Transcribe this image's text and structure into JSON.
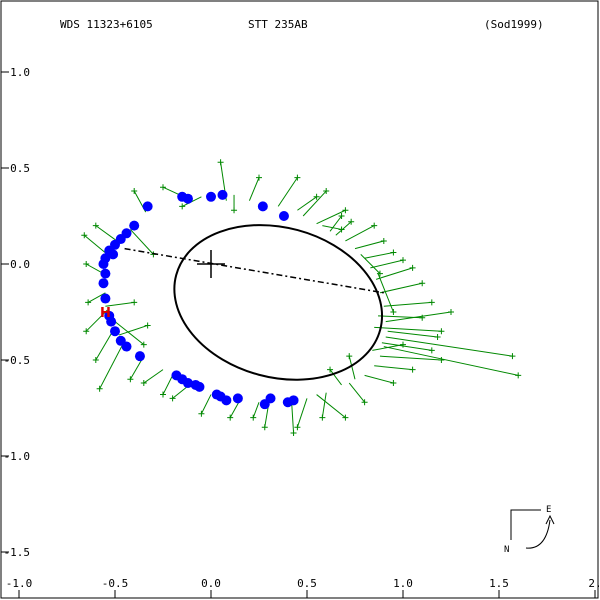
{
  "header": {
    "wds": "WDS 11323+6105",
    "pair": "STT 235AB",
    "ref": "(Sod1999)"
  },
  "compass": {
    "east": "E",
    "north": "N"
  },
  "colors": {
    "orbit": "#000000",
    "observations": "#0000ff",
    "residuals": "#008800",
    "hipparcos": "#dd0000",
    "axis": "#000000"
  },
  "chart_data": {
    "type": "scatter",
    "title": "STT 235AB",
    "xlabel": "",
    "ylabel": "",
    "xlim": [
      -1.0,
      2.0
    ],
    "ylim": [
      -1.7,
      1.3
    ],
    "x_ticks": [
      -1.0,
      -0.5,
      0.0,
      0.5,
      1.0,
      1.5,
      2.0
    ],
    "x_tick_labels": [
      "-1.0",
      "-0.5",
      "0.0",
      "0.5",
      "1.0",
      "1.5",
      "2."
    ],
    "y_ticks": [
      1.0,
      0.5,
      0.0,
      -0.5,
      -1.0,
      -1.5
    ],
    "y_tick_labels": [
      "1.0",
      "0.5",
      "0.0",
      "-0.5",
      "-1.0",
      "-1.5"
    ],
    "grid": false,
    "primary": [
      0.0,
      0.0
    ],
    "orbit": {
      "center": [
        0.35,
        -0.2
      ],
      "semi_major": 0.55,
      "semi_minor": 0.39,
      "tilt_deg": -15
    },
    "line_of_nodes": [
      [
        -0.45,
        0.08
      ],
      [
        0.9,
        -0.15
      ]
    ],
    "hipparcos_point": [
      -0.55,
      -0.25
    ],
    "hipparcos_label": "H",
    "observations": [
      [
        -0.55,
        -0.18
      ],
      [
        -0.56,
        -0.1
      ],
      [
        -0.55,
        -0.05
      ],
      [
        -0.56,
        0.0
      ],
      [
        -0.55,
        0.03
      ],
      [
        -0.53,
        0.07
      ],
      [
        -0.5,
        0.1
      ],
      [
        -0.47,
        0.13
      ],
      [
        -0.44,
        0.16
      ],
      [
        -0.4,
        0.2
      ],
      [
        -0.33,
        0.3
      ],
      [
        -0.15,
        0.35
      ],
      [
        -0.12,
        0.34
      ],
      [
        0.0,
        0.35
      ],
      [
        0.06,
        0.36
      ],
      [
        0.27,
        0.3
      ],
      [
        0.38,
        0.25
      ],
      [
        -0.51,
        0.05
      ],
      [
        -0.53,
        -0.27
      ],
      [
        -0.52,
        -0.3
      ],
      [
        -0.5,
        -0.35
      ],
      [
        -0.47,
        -0.4
      ],
      [
        -0.44,
        -0.43
      ],
      [
        -0.37,
        -0.48
      ],
      [
        -0.18,
        -0.58
      ],
      [
        -0.15,
        -0.6
      ],
      [
        -0.08,
        -0.63
      ],
      [
        -0.06,
        -0.64
      ],
      [
        0.03,
        -0.68
      ],
      [
        0.08,
        -0.71
      ],
      [
        0.14,
        -0.7
      ],
      [
        0.28,
        -0.73
      ],
      [
        0.31,
        -0.7
      ],
      [
        0.4,
        -0.72
      ],
      [
        0.43,
        -0.71
      ],
      [
        -0.12,
        -0.62
      ],
      [
        0.05,
        -0.69
      ]
    ],
    "residuals": [
      [
        [
          0.08,
          0.33
        ],
        [
          0.05,
          0.53
        ]
      ],
      [
        [
          -0.12,
          0.34
        ],
        [
          -0.25,
          0.4
        ]
      ],
      [
        [
          0.2,
          0.33
        ],
        [
          0.25,
          0.45
        ]
      ],
      [
        [
          0.35,
          0.3
        ],
        [
          0.45,
          0.45
        ]
      ],
      [
        [
          0.48,
          0.25
        ],
        [
          0.6,
          0.38
        ]
      ],
      [
        [
          0.55,
          0.21
        ],
        [
          0.7,
          0.28
        ]
      ],
      [
        [
          0.62,
          0.17
        ],
        [
          0.68,
          0.25
        ]
      ],
      [
        [
          0.7,
          0.12
        ],
        [
          0.85,
          0.2
        ]
      ],
      [
        [
          0.75,
          0.08
        ],
        [
          0.9,
          0.12
        ]
      ],
      [
        [
          0.8,
          0.03
        ],
        [
          0.95,
          0.06
        ]
      ],
      [
        [
          0.83,
          -0.02
        ],
        [
          1.0,
          0.02
        ]
      ],
      [
        [
          0.86,
          -0.08
        ],
        [
          1.05,
          -0.02
        ]
      ],
      [
        [
          0.88,
          -0.15
        ],
        [
          1.1,
          -0.1
        ]
      ],
      [
        [
          0.9,
          -0.22
        ],
        [
          1.15,
          -0.2
        ]
      ],
      [
        [
          0.91,
          -0.3
        ],
        [
          1.25,
          -0.25
        ]
      ],
      [
        [
          0.91,
          -0.38
        ],
        [
          1.57,
          -0.48
        ]
      ],
      [
        [
          0.9,
          -0.43
        ],
        [
          1.6,
          -0.58
        ]
      ],
      [
        [
          0.88,
          -0.48
        ],
        [
          1.2,
          -0.5
        ]
      ],
      [
        [
          0.85,
          -0.53
        ],
        [
          1.05,
          -0.55
        ]
      ],
      [
        [
          0.8,
          -0.58
        ],
        [
          0.95,
          -0.62
        ]
      ],
      [
        [
          0.72,
          -0.62
        ],
        [
          0.8,
          -0.72
        ]
      ],
      [
        [
          0.6,
          -0.67
        ],
        [
          0.58,
          -0.8
        ]
      ],
      [
        [
          0.5,
          -0.7
        ],
        [
          0.45,
          -0.85
        ]
      ],
      [
        [
          0.42,
          -0.72
        ],
        [
          0.43,
          -0.88
        ]
      ],
      [
        [
          0.3,
          -0.73
        ],
        [
          0.28,
          -0.85
        ]
      ],
      [
        [
          0.15,
          -0.71
        ],
        [
          0.1,
          -0.8
        ]
      ],
      [
        [
          0.0,
          -0.68
        ],
        [
          -0.05,
          -0.78
        ]
      ],
      [
        [
          -0.1,
          -0.62
        ],
        [
          -0.2,
          -0.7
        ]
      ],
      [
        [
          -0.25,
          -0.55
        ],
        [
          -0.35,
          -0.62
        ]
      ],
      [
        [
          -0.35,
          -0.48
        ],
        [
          -0.42,
          -0.6
        ]
      ],
      [
        [
          -0.45,
          -0.4
        ],
        [
          -0.58,
          -0.65
        ]
      ],
      [
        [
          -0.5,
          -0.33
        ],
        [
          -0.6,
          -0.5
        ]
      ],
      [
        [
          -0.54,
          -0.24
        ],
        [
          -0.65,
          -0.35
        ]
      ],
      [
        [
          -0.55,
          -0.15
        ],
        [
          -0.64,
          -0.2
        ]
      ],
      [
        [
          -0.56,
          -0.05
        ],
        [
          -0.65,
          0.0
        ]
      ],
      [
        [
          -0.54,
          0.05
        ],
        [
          -0.66,
          0.15
        ]
      ],
      [
        [
          -0.49,
          0.12
        ],
        [
          -0.6,
          0.2
        ]
      ],
      [
        [
          -0.42,
          0.18
        ],
        [
          -0.3,
          0.05
        ]
      ],
      [
        [
          -0.34,
          0.27
        ],
        [
          -0.4,
          0.38
        ]
      ],
      [
        [
          -0.55,
          -0.22
        ],
        [
          -0.4,
          -0.2
        ]
      ],
      [
        [
          -0.5,
          -0.3
        ],
        [
          -0.35,
          -0.42
        ]
      ],
      [
        [
          -0.48,
          -0.37
        ],
        [
          -0.33,
          -0.32
        ]
      ],
      [
        [
          0.85,
          -0.33
        ],
        [
          1.2,
          -0.35
        ]
      ],
      [
        [
          0.87,
          -0.27
        ],
        [
          1.1,
          -0.28
        ]
      ],
      [
        [
          0.89,
          -0.41
        ],
        [
          1.15,
          -0.45
        ]
      ],
      [
        [
          0.92,
          -0.35
        ],
        [
          1.18,
          -0.38
        ]
      ],
      [
        [
          0.84,
          -0.45
        ],
        [
          1.0,
          -0.42
        ]
      ],
      [
        [
          0.78,
          0.05
        ],
        [
          0.88,
          -0.05
        ]
      ],
      [
        [
          0.65,
          0.15
        ],
        [
          0.73,
          0.22
        ]
      ],
      [
        [
          -0.2,
          -0.58
        ],
        [
          -0.25,
          -0.68
        ]
      ],
      [
        [
          0.25,
          -0.72
        ],
        [
          0.22,
          -0.8
        ]
      ],
      [
        [
          0.55,
          -0.68
        ],
        [
          0.7,
          -0.8
        ]
      ],
      [
        [
          0.68,
          -0.63
        ],
        [
          0.62,
          -0.55
        ]
      ],
      [
        [
          0.75,
          -0.6
        ],
        [
          0.72,
          -0.48
        ]
      ],
      [
        [
          0.45,
          0.28
        ],
        [
          0.55,
          0.35
        ]
      ],
      [
        [
          0.58,
          0.2
        ],
        [
          0.68,
          0.18
        ]
      ],
      [
        [
          0.87,
          -0.05
        ],
        [
          0.95,
          -0.25
        ]
      ],
      [
        [
          -0.05,
          0.35
        ],
        [
          -0.15,
          0.3
        ]
      ],
      [
        [
          0.12,
          0.36
        ],
        [
          0.12,
          0.28
        ]
      ]
    ]
  }
}
